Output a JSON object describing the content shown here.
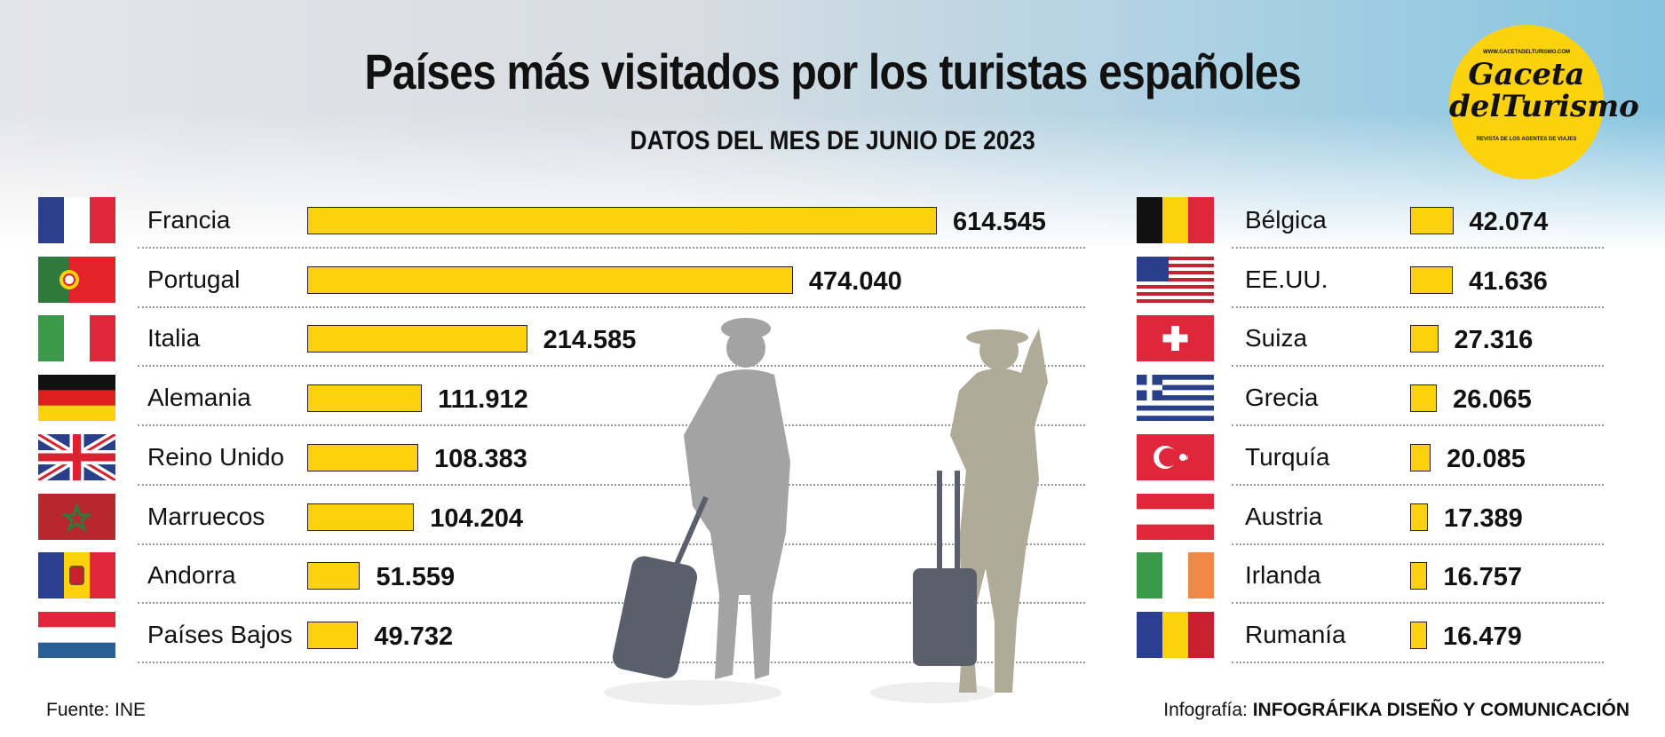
{
  "chart_data": {
    "type": "bar",
    "title": "Países más visitados por los turistas españoles",
    "subtitle": "DATOS DEL MES DE JUNIO DE 2023",
    "xlabel": "",
    "ylabel": "",
    "unit": "tourists",
    "left": [
      {
        "category": "Francia",
        "value": 614545,
        "label": "614.545",
        "flag": {
          "type": "v",
          "colors": [
            "#2b3f8f",
            "#ffffff",
            "#e0263a"
          ]
        }
      },
      {
        "category": "Portugal",
        "value": 474040,
        "label": "474.040",
        "flag": {
          "type": "pt",
          "colors": [
            "#2e7a3a",
            "#e3222a",
            "#fcd20f"
          ]
        }
      },
      {
        "category": "Italia",
        "value": 214585,
        "label": "214.585",
        "flag": {
          "type": "v",
          "colors": [
            "#3a9a4a",
            "#ffffff",
            "#e0263a"
          ]
        }
      },
      {
        "category": "Alemania",
        "value": 111912,
        "label": "111.912",
        "flag": {
          "type": "h",
          "colors": [
            "#111111",
            "#e0201f",
            "#fcd20f"
          ]
        }
      },
      {
        "category": "Reino Unido",
        "value": 108383,
        "label": "108.383",
        "flag": {
          "type": "uk",
          "colors": [
            "#2a3f8a",
            "#ffffff",
            "#d9222e"
          ]
        }
      },
      {
        "category": "Marruecos",
        "value": 104204,
        "label": "104.204",
        "flag": {
          "type": "ma",
          "colors": [
            "#b8272e",
            "#2e7a3a"
          ]
        }
      },
      {
        "category": "Andorra",
        "value": 51559,
        "label": "51.559",
        "flag": {
          "type": "ad",
          "colors": [
            "#2a3f8f",
            "#fcd20f",
            "#e0263a"
          ]
        }
      },
      {
        "category": "Países Bajos",
        "value": 49732,
        "label": "49.732",
        "flag": {
          "type": "h",
          "colors": [
            "#e0263a",
            "#ffffff",
            "#2a5f95"
          ]
        }
      }
    ],
    "right": [
      {
        "category": "Bélgica",
        "value": 42074,
        "label": "42.074",
        "flag": {
          "type": "v",
          "colors": [
            "#111111",
            "#fcd20f",
            "#e0263a"
          ]
        }
      },
      {
        "category": "EE.UU.",
        "value": 41636,
        "label": "41.636",
        "flag": {
          "type": "us",
          "colors": [
            "#c8202e",
            "#ffffff",
            "#2a3f8a"
          ]
        }
      },
      {
        "category": "Suiza",
        "value": 27316,
        "label": "27.316",
        "flag": {
          "type": "ch",
          "colors": [
            "#e0263a",
            "#ffffff"
          ]
        }
      },
      {
        "category": "Grecia",
        "value": 26065,
        "label": "26.065",
        "flag": {
          "type": "gr",
          "colors": [
            "#2a3f8a",
            "#ffffff"
          ]
        }
      },
      {
        "category": "Turquía",
        "value": 20085,
        "label": "20.085",
        "flag": {
          "type": "tr",
          "colors": [
            "#e0263a",
            "#ffffff"
          ]
        }
      },
      {
        "category": "Austria",
        "value": 17389,
        "label": "17.389",
        "flag": {
          "type": "h",
          "colors": [
            "#e0263a",
            "#ffffff",
            "#e0263a"
          ]
        }
      },
      {
        "category": "Irlanda",
        "value": 16757,
        "label": "16.757",
        "flag": {
          "type": "v",
          "colors": [
            "#3a9a4a",
            "#ffffff",
            "#ef8844"
          ]
        }
      },
      {
        "category": "Rumanía",
        "value": 16479,
        "label": "16.479",
        "flag": {
          "type": "v",
          "colors": [
            "#2a3f8f",
            "#fcd20f",
            "#c8202e"
          ]
        }
      }
    ],
    "bar_color": "#fcd20f"
  },
  "logo": {
    "url": "WWW.GACETADELTURISMO.COM",
    "name1": "Gaceta",
    "name2": "delTurismo",
    "tagline": "REVISTA DE LOS AGENTES DE VIAJES"
  },
  "footer": {
    "source": "Fuente: INE",
    "credit_prefix": "Infografía: ",
    "credit": "INFOGRÁFIKA DISEÑO Y COMUNICACIÓN"
  }
}
